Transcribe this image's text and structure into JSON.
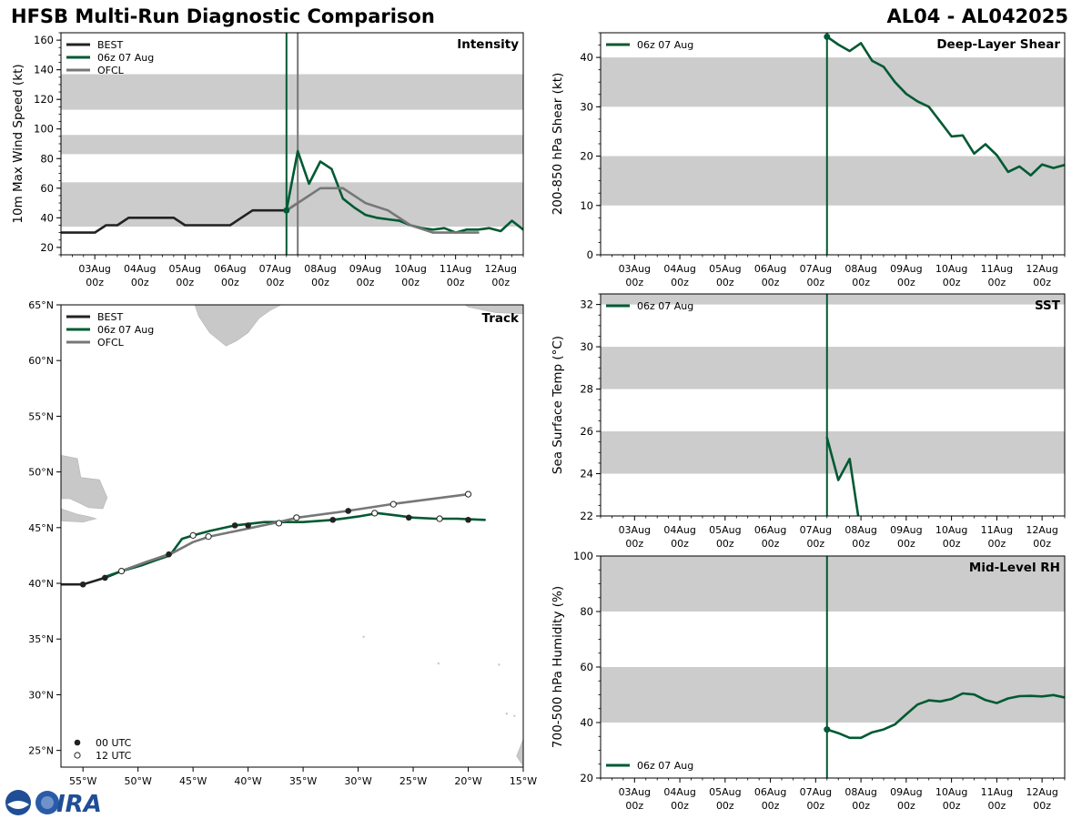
{
  "header": {
    "title_left": "HFSB Multi-Run Diagnostic Comparison",
    "title_right": "AL04 - AL042025"
  },
  "colors": {
    "best": "#222222",
    "run": "#005a32",
    "ofcl": "#777777",
    "band": "#cccccc",
    "land": "#c8c8c8"
  },
  "legend": {
    "best": "BEST",
    "run": "06z 07 Aug",
    "ofcl": "OFCL",
    "utc00": "00 UTC",
    "utc12": "12 UTC"
  },
  "time_axis": {
    "ticks": [
      {
        "line1": "03Aug",
        "line2": "00z",
        "t": 0
      },
      {
        "line1": "04Aug",
        "line2": "00z",
        "t": 1
      },
      {
        "line1": "05Aug",
        "line2": "00z",
        "t": 2
      },
      {
        "line1": "06Aug",
        "line2": "00z",
        "t": 3
      },
      {
        "line1": "07Aug",
        "line2": "00z",
        "t": 4
      },
      {
        "line1": "08Aug",
        "line2": "00z",
        "t": 5
      },
      {
        "line1": "09Aug",
        "line2": "00z",
        "t": 6
      },
      {
        "line1": "10Aug",
        "line2": "00z",
        "t": 7
      },
      {
        "line1": "11Aug",
        "line2": "00z",
        "t": 8
      },
      {
        "line1": "12Aug",
        "line2": "00z",
        "t": 9
      }
    ]
  },
  "chart_data": [
    {
      "id": "intensity",
      "type": "line",
      "title": "Intensity",
      "ylabel": "10m Max Wind Speed (kt)",
      "xlim": [
        -0.75,
        9.5
      ],
      "ylim": [
        15,
        165
      ],
      "yticks": [
        20,
        40,
        60,
        80,
        100,
        120,
        140,
        160
      ],
      "bands": [
        [
          34,
          64
        ],
        [
          83,
          96
        ],
        [
          113,
          137
        ]
      ],
      "vlines": [
        {
          "t": 4.25,
          "series": "run"
        },
        {
          "t": 4.5,
          "series": "ofcl"
        }
      ],
      "series": [
        {
          "name": "BEST",
          "key": "best",
          "points": [
            [
              -0.75,
              30
            ],
            [
              -0.5,
              30
            ],
            [
              -0.25,
              30
            ],
            [
              0,
              30
            ],
            [
              0.25,
              35
            ],
            [
              0.5,
              35
            ],
            [
              0.75,
              40
            ],
            [
              1,
              40
            ],
            [
              1.25,
              40
            ],
            [
              1.5,
              40
            ],
            [
              1.75,
              40
            ],
            [
              2,
              35
            ],
            [
              2.25,
              35
            ],
            [
              2.5,
              35
            ],
            [
              2.75,
              35
            ],
            [
              3,
              35
            ],
            [
              3.25,
              40
            ],
            [
              3.5,
              45
            ],
            [
              3.75,
              45
            ],
            [
              4,
              45
            ],
            [
              4.25,
              45
            ],
            [
              4.5,
              50
            ]
          ]
        },
        {
          "name": "06z 07 Aug",
          "key": "run",
          "points": [
            [
              4.25,
              45
            ],
            [
              4.5,
              85
            ],
            [
              4.75,
              63
            ],
            [
              5,
              78
            ],
            [
              5.25,
              73
            ],
            [
              5.5,
              53
            ],
            [
              5.75,
              47
            ],
            [
              6,
              42
            ],
            [
              6.25,
              40
            ],
            [
              6.5,
              39
            ],
            [
              6.75,
              38
            ],
            [
              7,
              35
            ],
            [
              7.25,
              33
            ],
            [
              7.5,
              32
            ],
            [
              7.75,
              33
            ],
            [
              8,
              30
            ],
            [
              8.25,
              32
            ],
            [
              8.5,
              32
            ],
            [
              8.75,
              33
            ],
            [
              9,
              31
            ],
            [
              9.25,
              38
            ],
            [
              9.5,
              32
            ]
          ]
        },
        {
          "name": "OFCL",
          "key": "ofcl",
          "points": [
            [
              4.25,
              45
            ],
            [
              4.5,
              50
            ],
            [
              5,
              60
            ],
            [
              5.5,
              60
            ],
            [
              6,
              50
            ],
            [
              6.5,
              45
            ],
            [
              7,
              35
            ],
            [
              7.5,
              30
            ],
            [
              8,
              30
            ],
            [
              8.5,
              30
            ]
          ]
        }
      ],
      "markers": [
        {
          "series": "run",
          "t": 4.25,
          "v": 45
        }
      ]
    },
    {
      "id": "shear",
      "type": "line",
      "title": "Deep-Layer Shear",
      "ylabel": "200-850 hPa Shear (kt)",
      "xlim": [
        -0.75,
        9.5
      ],
      "ylim": [
        0,
        45
      ],
      "yticks": [
        0,
        10,
        20,
        30,
        40
      ],
      "bands": [
        [
          10,
          20
        ],
        [
          30,
          40
        ]
      ],
      "vlines": [
        {
          "t": 4.25,
          "series": "run"
        }
      ],
      "series": [
        {
          "name": "06z 07 Aug",
          "key": "run",
          "points": [
            [
              4.25,
              44.2
            ],
            [
              4.5,
              42.6
            ],
            [
              4.75,
              41.3
            ],
            [
              5,
              42.9
            ],
            [
              5.25,
              39.3
            ],
            [
              5.5,
              38.1
            ],
            [
              5.75,
              35
            ],
            [
              6,
              32.6
            ],
            [
              6.25,
              31.1
            ],
            [
              6.5,
              30
            ],
            [
              6.75,
              27
            ],
            [
              7,
              24
            ],
            [
              7.25,
              24.2
            ],
            [
              7.5,
              20.5
            ],
            [
              7.75,
              22.4
            ],
            [
              8,
              20.2
            ],
            [
              8.25,
              16.8
            ],
            [
              8.5,
              17.9
            ],
            [
              8.75,
              16.1
            ],
            [
              9,
              18.3
            ],
            [
              9.25,
              17.6
            ],
            [
              9.5,
              18.2
            ]
          ]
        }
      ],
      "markers": [
        {
          "series": "run",
          "t": 4.25,
          "v": 44.2
        }
      ]
    },
    {
      "id": "sst",
      "type": "line",
      "title": "SST",
      "ylabel": "Sea Surface Temp (°C)",
      "xlim": [
        -0.75,
        9.5
      ],
      "ylim": [
        22,
        32.5
      ],
      "yticks": [
        22,
        24,
        26,
        28,
        30,
        32
      ],
      "bands": [
        [
          24,
          26
        ],
        [
          28,
          30
        ],
        [
          32,
          34
        ]
      ],
      "vlines": [
        {
          "t": 4.25,
          "series": "run"
        }
      ],
      "series": [
        {
          "name": "06z 07 Aug",
          "key": "run",
          "points": [
            [
              4.25,
              25.7
            ],
            [
              4.5,
              23.7
            ],
            [
              4.75,
              24.7
            ],
            [
              4.94,
              22
            ]
          ]
        }
      ],
      "markers": []
    },
    {
      "id": "rh",
      "type": "line",
      "title": "Mid-Level RH",
      "ylabel": "700-500 hPa Humidity (%)",
      "xlim": [
        -0.75,
        9.5
      ],
      "ylim": [
        20,
        100
      ],
      "yticks": [
        20,
        40,
        60,
        80,
        100
      ],
      "bands": [
        [
          40,
          60
        ],
        [
          80,
          100
        ]
      ],
      "vlines": [
        {
          "t": 4.25,
          "series": "run"
        }
      ],
      "series": [
        {
          "name": "06z 07 Aug",
          "key": "run",
          "points": [
            [
              4.25,
              37.5
            ],
            [
              4.5,
              36.2
            ],
            [
              4.75,
              34.5
            ],
            [
              5,
              34.5
            ],
            [
              5.25,
              36.5
            ],
            [
              5.5,
              37.5
            ],
            [
              5.75,
              39.3
            ],
            [
              6,
              43
            ],
            [
              6.25,
              46.5
            ],
            [
              6.5,
              48
            ],
            [
              6.75,
              47.6
            ],
            [
              7,
              48.5
            ],
            [
              7.25,
              50.5
            ],
            [
              7.5,
              50.1
            ],
            [
              7.75,
              48.1
            ],
            [
              8,
              47
            ],
            [
              8.25,
              48.7
            ],
            [
              8.5,
              49.5
            ],
            [
              8.75,
              49.6
            ],
            [
              9,
              49.4
            ],
            [
              9.25,
              49.9
            ],
            [
              9.5,
              49
            ]
          ]
        }
      ],
      "markers": [
        {
          "series": "run",
          "t": 4.25,
          "v": 37.5
        }
      ]
    },
    {
      "id": "track",
      "type": "scatter",
      "title": "Track",
      "xlim": [
        -57,
        -15
      ],
      "ylim": [
        23.5,
        65
      ],
      "xticks": [
        {
          "v": -55,
          "label": "55°W"
        },
        {
          "v": -50,
          "label": "50°W"
        },
        {
          "v": -45,
          "label": "45°W"
        },
        {
          "v": -40,
          "label": "40°W"
        },
        {
          "v": -35,
          "label": "35°W"
        },
        {
          "v": -30,
          "label": "30°W"
        },
        {
          "v": -25,
          "label": "25°W"
        },
        {
          "v": -20,
          "label": "20°W"
        },
        {
          "v": -15,
          "label": "15°W"
        }
      ],
      "yticks": [
        {
          "v": 25,
          "label": "25°N"
        },
        {
          "v": 30,
          "label": "30°N"
        },
        {
          "v": 35,
          "label": "35°N"
        },
        {
          "v": 40,
          "label": "40°N"
        },
        {
          "v": 45,
          "label": "45°N"
        },
        {
          "v": 50,
          "label": "50°N"
        },
        {
          "v": 55,
          "label": "55°N"
        },
        {
          "v": 60,
          "label": "60°N"
        },
        {
          "v": 65,
          "label": "65°N"
        }
      ],
      "series": [
        {
          "name": "BEST",
          "key": "best",
          "points": [
            [
              -57,
              39.9
            ],
            [
              -55,
              39.9
            ],
            [
              -53,
              40.5
            ],
            [
              -51.5,
              41.1
            ],
            [
              -49.3,
              41.9
            ],
            [
              -47.2,
              42.6
            ]
          ]
        },
        {
          "name": "06z 07 Aug",
          "key": "run",
          "points": [
            [
              -53.2,
              40.5
            ],
            [
              -51.5,
              41.1
            ],
            [
              -49.7,
              41.6
            ],
            [
              -48.3,
              42.1
            ],
            [
              -47.1,
              42.5
            ],
            [
              -46,
              44
            ],
            [
              -45,
              44.3
            ],
            [
              -43.5,
              44.7
            ],
            [
              -41.2,
              45.2
            ],
            [
              -38.5,
              45.5
            ],
            [
              -35,
              45.5
            ],
            [
              -32.3,
              45.7
            ],
            [
              -30,
              46
            ],
            [
              -28.2,
              46.3
            ],
            [
              -26.5,
              46.1
            ],
            [
              -25,
              45.9
            ],
            [
              -23,
              45.8
            ],
            [
              -21,
              45.8
            ],
            [
              -18.5,
              45.7
            ]
          ]
        },
        {
          "name": "OFCL",
          "key": "ofcl",
          "points": [
            [
              -51.5,
              41.1
            ],
            [
              -49.3,
              41.9
            ],
            [
              -47.1,
              42.6
            ],
            [
              -45,
              43.7
            ],
            [
              -43.5,
              44.2
            ],
            [
              -37.2,
              45.5
            ],
            [
              -35.5,
              45.9
            ],
            [
              -31,
              46.5
            ],
            [
              -27,
              47.1
            ],
            [
              -20,
              48
            ]
          ]
        }
      ],
      "points_00utc": [
        [
          -55,
          39.9
        ],
        [
          -53,
          40.5
        ],
        [
          -47.2,
          42.6
        ],
        [
          -41.2,
          45.2
        ],
        [
          -40,
          45.2
        ],
        [
          -32.3,
          45.7
        ],
        [
          -30.9,
          46.5
        ],
        [
          -25.4,
          45.9
        ],
        [
          -20,
          45.7
        ]
      ],
      "points_12utc": [
        [
          -51.5,
          41.1
        ],
        [
          -45,
          44.3
        ],
        [
          -43.6,
          44.2
        ],
        [
          -37.2,
          45.4
        ],
        [
          -35.6,
          45.9
        ],
        [
          -28.5,
          46.3
        ],
        [
          -26.8,
          47.1
        ],
        [
          -22.6,
          45.8
        ],
        [
          -20,
          48
        ]
      ]
    }
  ]
}
